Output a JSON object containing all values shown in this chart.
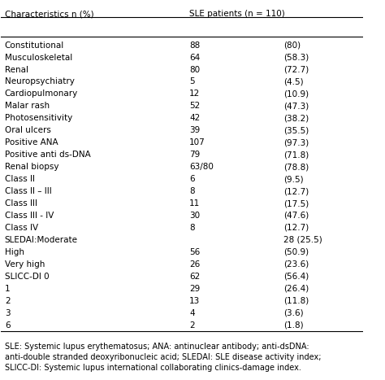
{
  "header_col1": "Characteristics n (%)",
  "header_col2": "SLE patients (n = 110)",
  "rows": [
    {
      "label": "Constitutional",
      "value": "88",
      "pct": "(80)"
    },
    {
      "label": "Musculoskeletal",
      "value": "64",
      "pct": "(58.3)"
    },
    {
      "label": "Renal",
      "value": "80",
      "pct": "(72.7)"
    },
    {
      "label": "Neuropsychiatry",
      "value": "5",
      "pct": "(4.5)"
    },
    {
      "label": "Cardiopulmonary",
      "value": "12",
      "pct": "(10.9)"
    },
    {
      "label": "Malar rash",
      "value": "52",
      "pct": "(47.3)"
    },
    {
      "label": "Photosensitivity",
      "value": "42",
      "pct": "(38.2)"
    },
    {
      "label": "Oral ulcers",
      "value": "39",
      "pct": "(35.5)"
    },
    {
      "label": "Positive ANA",
      "value": "107",
      "pct": "(97.3)"
    },
    {
      "label": "Positive anti ds-DNA",
      "value": "79",
      "pct": "(71.8)"
    },
    {
      "label": "Renal biopsy",
      "value": "63/80",
      "pct": "(78.8)"
    },
    {
      "label": "Class II",
      "value": "6",
      "pct": "(9.5)"
    },
    {
      "label": "Class II – III",
      "value": "8",
      "pct": "(12.7)"
    },
    {
      "label": "Class III",
      "value": "11",
      "pct": "(17.5)"
    },
    {
      "label": "Class III - IV",
      "value": "30",
      "pct": "(47.6)"
    },
    {
      "label": "Class IV",
      "value": "8",
      "pct": "(12.7)"
    },
    {
      "label": "SLEDAI:Moderate",
      "value": "",
      "pct": "28 (25.5)"
    },
    {
      "label": "High",
      "value": "56",
      "pct": "(50.9)"
    },
    {
      "label": "Very high",
      "value": "26",
      "pct": "(23.6)"
    },
    {
      "label": "SLICC-DI 0",
      "value": "62",
      "pct": "(56.4)"
    },
    {
      "label": "1",
      "value": "29",
      "pct": "(26.4)"
    },
    {
      "label": "2",
      "value": "13",
      "pct": "(11.8)"
    },
    {
      "label": "3",
      "value": "4",
      "pct": "(3.6)"
    },
    {
      "label": "6",
      "value": "2",
      "pct": "(1.8)"
    }
  ],
  "footnote": "SLE: Systemic lupus erythematosus; ANA: antinuclear antibody; anti-dsDNA:\nanti-double stranded deoxyribonucleic acid; SLEDAI: SLE disease activity index;\nSLICC-DI: Systemic lupus international collaborating clinics-damage index.",
  "bg_color": "#ffffff",
  "header_line_color": "#000000",
  "text_color": "#000000",
  "font_size": 7.5,
  "header_font_size": 7.5
}
